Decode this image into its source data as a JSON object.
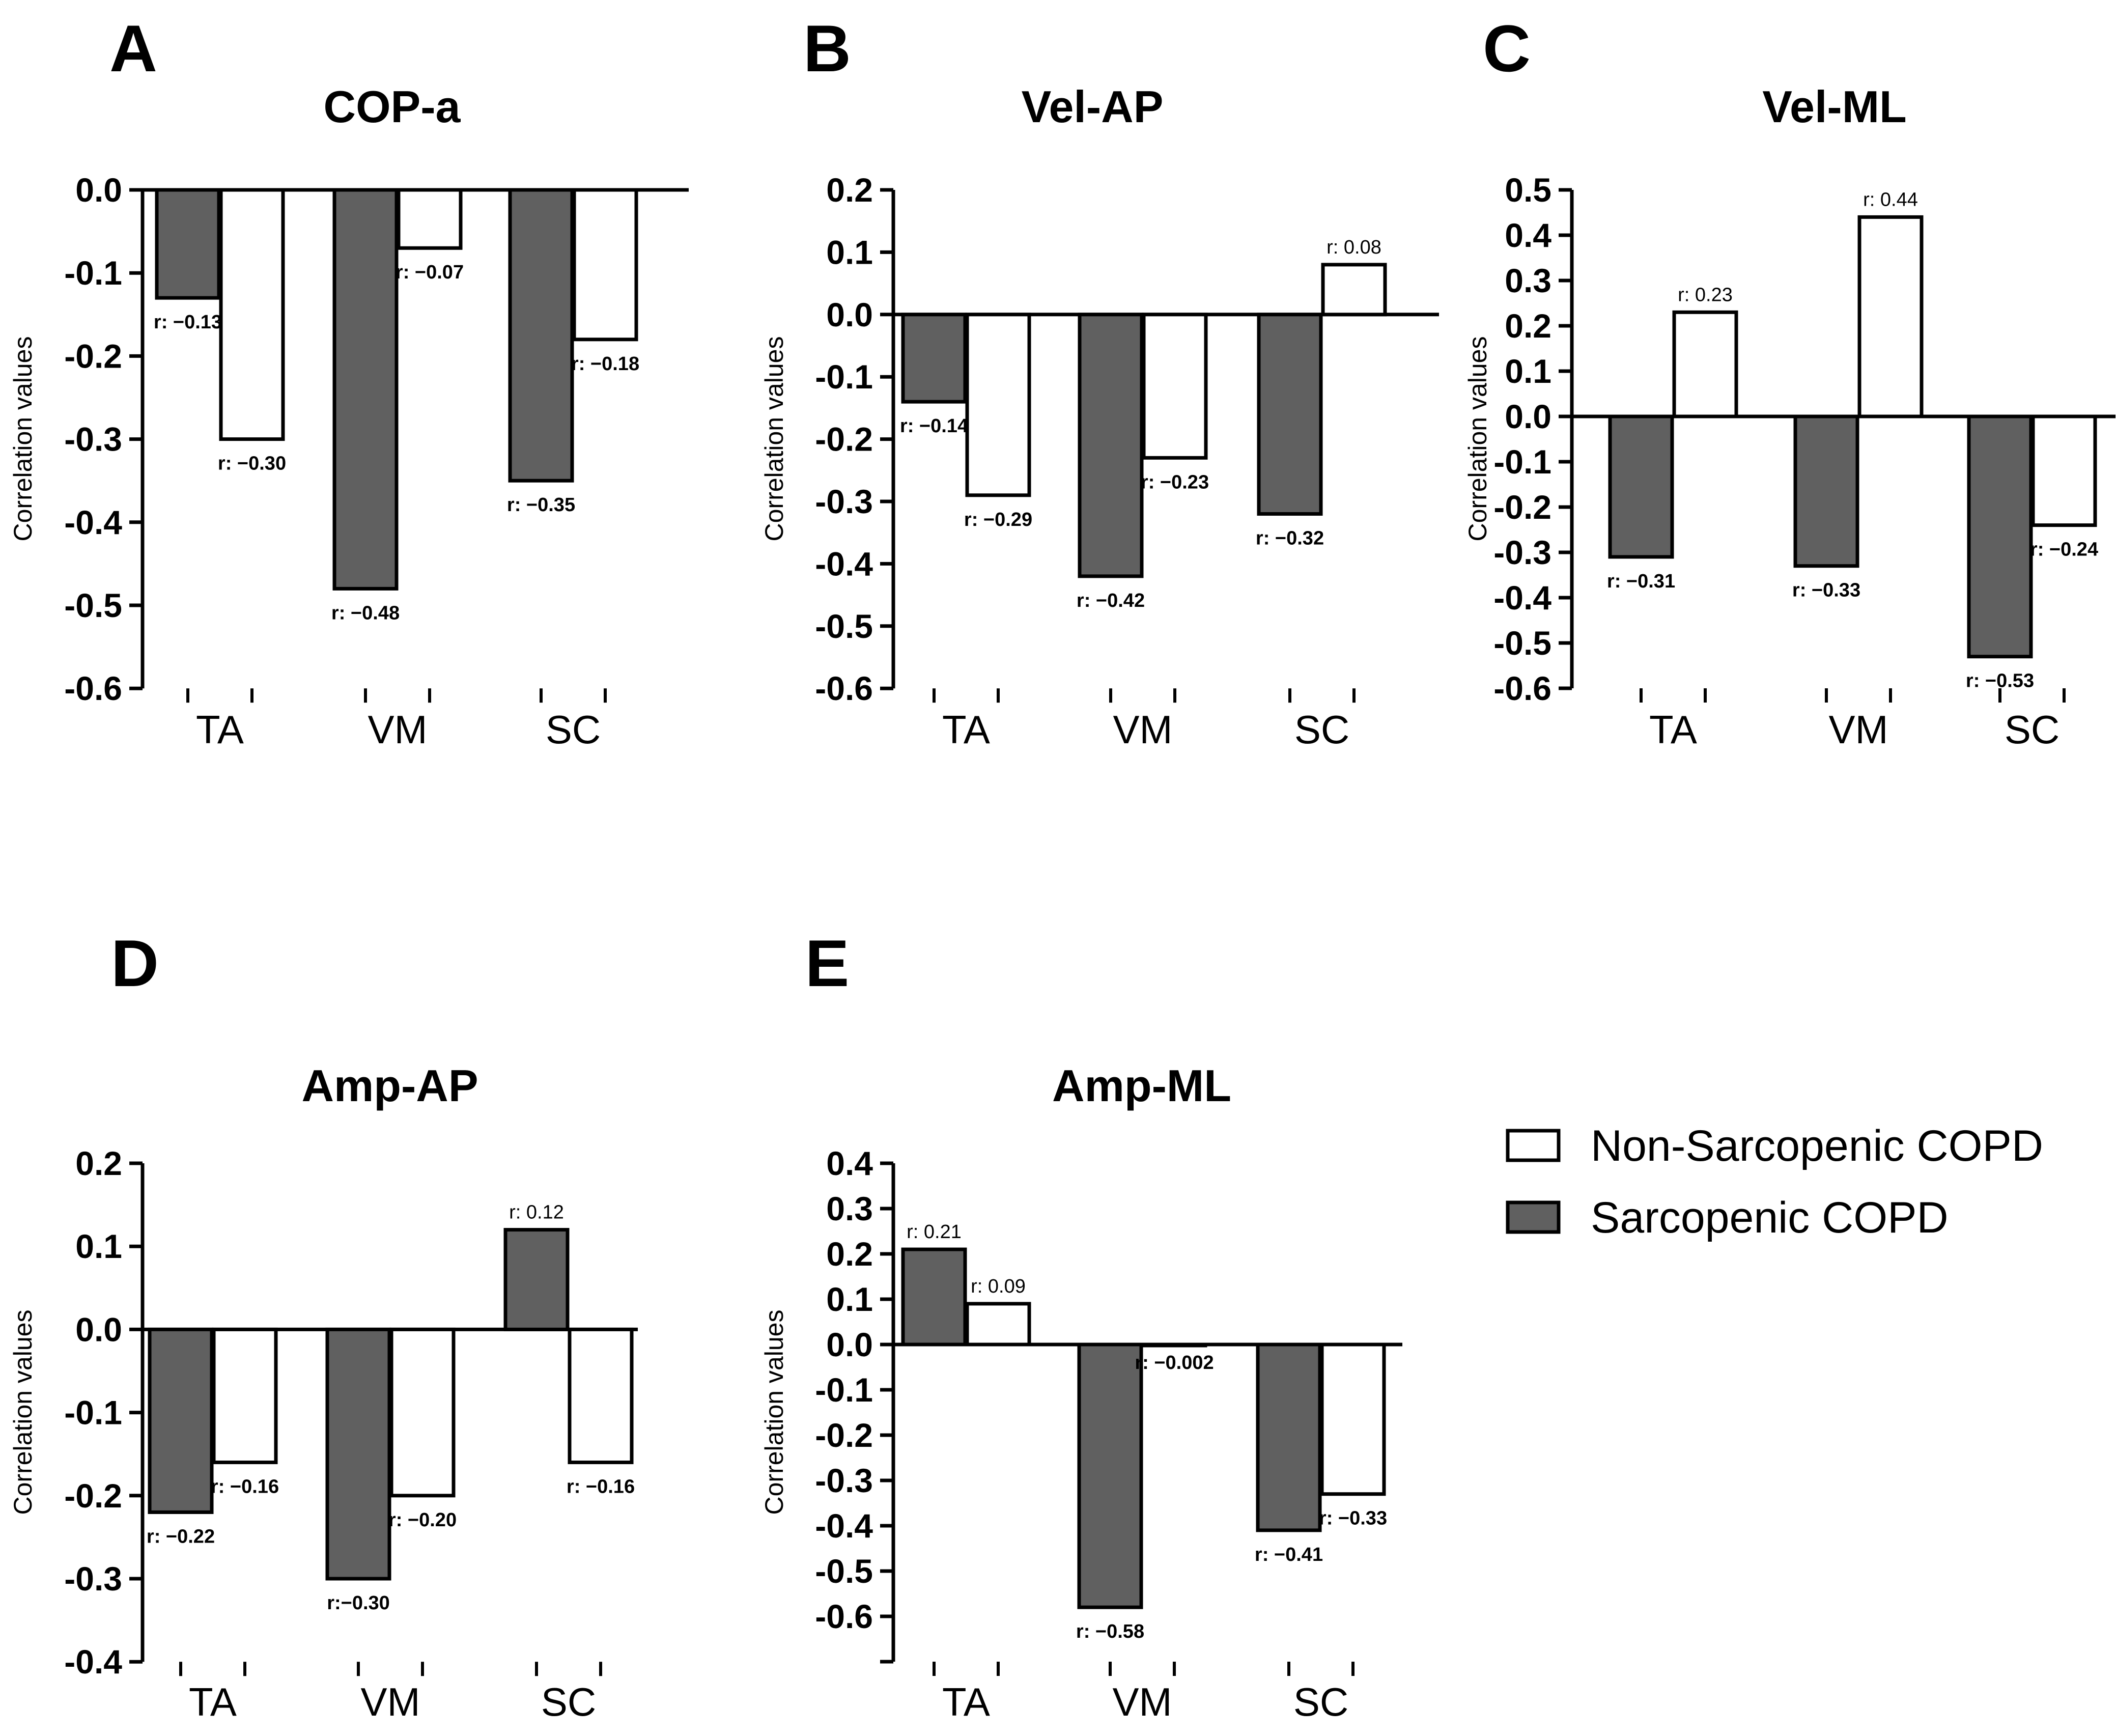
{
  "colors": {
    "sarcopenic": "#606060",
    "non_sarcopenic": "#ffffff",
    "stroke": "#000000"
  },
  "legend": {
    "items": [
      {
        "key": "non_sarcopenic",
        "label": "Non-Sarcopenic COPD"
      },
      {
        "key": "sarcopenic",
        "label": "Sarcopenic COPD"
      }
    ]
  },
  "chart_data": [
    {
      "panel": "A",
      "type": "bar",
      "title": "COP-a",
      "ylabel": "Correlation values",
      "xlabel": "",
      "ylim": [
        -0.6,
        0.0
      ],
      "yticks": [
        "0.0",
        "-0.1",
        "-0.2",
        "-0.3",
        "-0.4",
        "-0.5",
        "-0.6"
      ],
      "categories": [
        "TA",
        "VM",
        "SC"
      ],
      "series": [
        {
          "name": "Sarcopenic COPD",
          "values": [
            -0.13,
            -0.48,
            -0.35
          ],
          "labels": [
            "r: −0.13",
            "r: −0.48",
            "r: −0.35"
          ]
        },
        {
          "name": "Non-Sarcopenic COPD",
          "values": [
            -0.3,
            -0.07,
            -0.18
          ],
          "labels": [
            "r: −0.30",
            "r: −0.07",
            "r: −0.18"
          ]
        }
      ]
    },
    {
      "panel": "B",
      "type": "bar",
      "title": "Vel-AP",
      "ylabel": "Correlation values",
      "xlabel": "",
      "ylim": [
        -0.6,
        0.2
      ],
      "yticks": [
        "0.2",
        "0.1",
        "0.0",
        "-0.1",
        "-0.2",
        "-0.3",
        "-0.4",
        "-0.5",
        "-0.6"
      ],
      "categories": [
        "TA",
        "VM",
        "SC"
      ],
      "series": [
        {
          "name": "Sarcopenic COPD",
          "values": [
            -0.14,
            -0.42,
            -0.32
          ],
          "labels": [
            "r: −0.14",
            "r: −0.42",
            "r: −0.32"
          ]
        },
        {
          "name": "Non-Sarcopenic COPD",
          "values": [
            -0.29,
            -0.23,
            0.08
          ],
          "labels": [
            "r: −0.29",
            "r: −0.23",
            "r: 0.08"
          ]
        }
      ]
    },
    {
      "panel": "C",
      "type": "bar",
      "title": "Vel-ML",
      "ylabel": "Correlation values",
      "xlabel": "",
      "ylim": [
        -0.6,
        0.5
      ],
      "yticks": [
        "0.5",
        "0.4",
        "0.3",
        "0.2",
        "0.1",
        "0.0",
        "-0.1",
        "-0.2",
        "-0.3",
        "-0.4",
        "-0.5",
        "-0.6"
      ],
      "categories": [
        "TA",
        "VM",
        "SC"
      ],
      "series": [
        {
          "name": "Sarcopenic COPD",
          "values": [
            -0.31,
            -0.33,
            -0.53
          ],
          "labels": [
            "r: −0.31",
            "r: −0.33",
            "r: −0.53"
          ]
        },
        {
          "name": "Non-Sarcopenic COPD",
          "values": [
            0.23,
            0.44,
            -0.24
          ],
          "labels": [
            "r: 0.23",
            "r: 0.44",
            "r: −0.24"
          ]
        }
      ]
    },
    {
      "panel": "D",
      "type": "bar",
      "title": "Amp-AP",
      "ylabel": "Correlation values",
      "xlabel": "",
      "ylim": [
        -0.4,
        0.2
      ],
      "yticks": [
        "0.2",
        "0.1",
        "0.0",
        "-0.1",
        "-0.2",
        "-0.3",
        "-0.4"
      ],
      "categories": [
        "TA",
        "VM",
        "SC"
      ],
      "series": [
        {
          "name": "Sarcopenic COPD",
          "values": [
            -0.22,
            -0.3,
            0.12
          ],
          "labels": [
            "r: −0.22",
            "r:−0.30",
            "r: 0.12"
          ]
        },
        {
          "name": "Non-Sarcopenic COPD",
          "values": [
            -0.16,
            -0.2,
            -0.16
          ],
          "labels": [
            "r: −0.16",
            "r: −0.20",
            "r: −0.16"
          ]
        }
      ]
    },
    {
      "panel": "E",
      "type": "bar",
      "title": "Amp-ML",
      "ylabel": "Correlation values",
      "xlabel": "",
      "ylim": [
        -0.7,
        0.4
      ],
      "yticks": [
        "0.4",
        "0.3",
        "0.2",
        "0.1",
        "0.0",
        "-0.1",
        "-0.2",
        "-0.3",
        "-0.4",
        "-0.5",
        "-0.6"
      ],
      "categories": [
        "TA",
        "VM",
        "SC"
      ],
      "series": [
        {
          "name": "Sarcopenic COPD",
          "values": [
            0.21,
            -0.58,
            -0.41
          ],
          "labels": [
            "r: 0.21",
            "r: −0.58",
            "r: −0.41"
          ]
        },
        {
          "name": "Non-Sarcopenic COPD",
          "values": [
            0.09,
            -0.002,
            -0.33
          ],
          "labels": [
            "r: 0.09",
            "r: −0.002",
            "r: −0.33"
          ]
        }
      ]
    }
  ]
}
